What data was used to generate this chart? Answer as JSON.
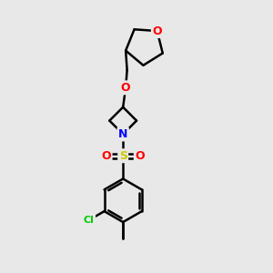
{
  "background_color": "#e8e8e8",
  "atom_colors": {
    "O": "#ff0000",
    "N": "#0000ff",
    "S": "#cccc00",
    "Cl": "#00cc00",
    "C": "#000000"
  },
  "bond_color": "#000000",
  "bond_width": 1.8,
  "figsize": [
    3.0,
    3.0
  ],
  "dpi": 100,
  "xlim": [
    0,
    10
  ],
  "ylim": [
    0,
    10
  ]
}
